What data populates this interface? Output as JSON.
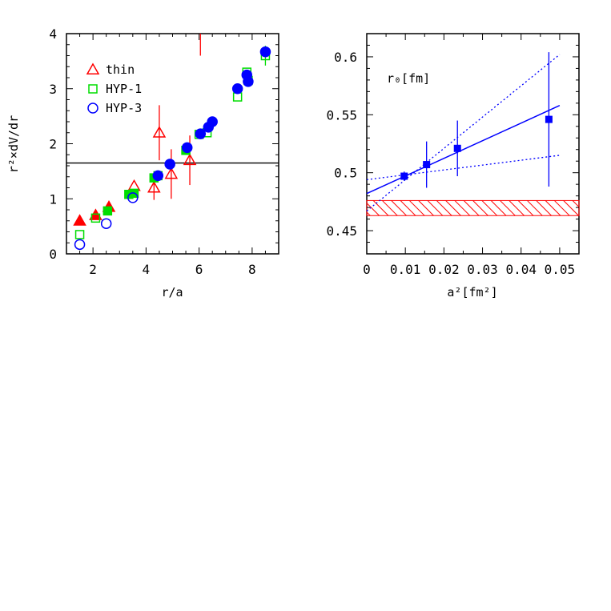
{
  "chart_data": [
    {
      "type": "scatter",
      "xlabel": "r/a",
      "ylabel": "r²×dV/dr",
      "xlim": [
        1,
        9
      ],
      "ylim": [
        0,
        4
      ],
      "xticks": [
        "2",
        "4",
        "6",
        "8"
      ],
      "yticks": [
        "0",
        "1",
        "2",
        "3",
        "4"
      ],
      "hline": 1.65,
      "legend_position": "top-left",
      "series": [
        {
          "name": "thin",
          "color": "#ff0000",
          "points": [
            {
              "x": 1.5,
              "y": 0.6,
              "filled": true
            },
            {
              "x": 2.1,
              "y": 0.7,
              "filled": true
            },
            {
              "x": 2.6,
              "y": 0.85,
              "filled": true
            },
            {
              "x": 3.55,
              "y": 1.23,
              "filled": false
            },
            {
              "x": 4.3,
              "y": 1.2,
              "yerr": 0.22,
              "filled": false
            },
            {
              "x": 4.5,
              "y": 2.2,
              "yerr": 0.5,
              "filled": false
            },
            {
              "x": 4.95,
              "y": 1.45,
              "yerr": 0.45,
              "filled": false
            },
            {
              "x": 5.65,
              "y": 1.7,
              "yerr": 0.45,
              "filled": false
            },
            {
              "x": 6.05,
              "y": 4.2,
              "yerr": 0.6,
              "filled": false
            }
          ]
        },
        {
          "name": "HYP-1",
          "color": "#00dd00",
          "points": [
            {
              "x": 1.5,
              "y": 0.35,
              "filled": false
            },
            {
              "x": 2.1,
              "y": 0.65,
              "filled": false
            },
            {
              "x": 2.55,
              "y": 0.78,
              "filled": true
            },
            {
              "x": 3.35,
              "y": 1.08,
              "filled": true
            },
            {
              "x": 3.55,
              "y": 1.1,
              "filled": true
            },
            {
              "x": 4.3,
              "y": 1.38,
              "filled": true
            },
            {
              "x": 4.45,
              "y": 1.42,
              "filled": true
            },
            {
              "x": 5.5,
              "y": 1.88,
              "filled": true
            },
            {
              "x": 6.0,
              "y": 2.17,
              "filled": false
            },
            {
              "x": 6.3,
              "y": 2.2,
              "filled": false
            },
            {
              "x": 7.45,
              "y": 2.85,
              "filled": false
            },
            {
              "x": 7.8,
              "y": 3.3,
              "filled": false
            },
            {
              "x": 7.85,
              "y": 3.15,
              "filled": false
            },
            {
              "x": 8.5,
              "y": 3.6,
              "yerr": 0.18,
              "filled": false
            }
          ]
        },
        {
          "name": "HYP-3",
          "color": "#0000ff",
          "points": [
            {
              "x": 1.5,
              "y": 0.17,
              "filled": false
            },
            {
              "x": 2.5,
              "y": 0.55,
              "filled": false
            },
            {
              "x": 3.5,
              "y": 1.02,
              "filled": false
            },
            {
              "x": 4.45,
              "y": 1.42,
              "filled": true
            },
            {
              "x": 4.9,
              "y": 1.63,
              "filled": true
            },
            {
              "x": 5.55,
              "y": 1.93,
              "filled": true
            },
            {
              "x": 6.05,
              "y": 2.18,
              "filled": true
            },
            {
              "x": 6.35,
              "y": 2.3,
              "filled": true
            },
            {
              "x": 6.5,
              "y": 2.4,
              "filled": true
            },
            {
              "x": 7.45,
              "y": 3.0,
              "filled": true
            },
            {
              "x": 7.8,
              "y": 3.25,
              "filled": true
            },
            {
              "x": 7.85,
              "y": 3.13,
              "filled": true
            },
            {
              "x": 8.5,
              "y": 3.67,
              "filled": true
            }
          ]
        }
      ]
    },
    {
      "type": "scatter",
      "xlabel": "a²[fm²]",
      "ylabel": "",
      "annotation": "r₀[fm]",
      "xlim": [
        0,
        0.055
      ],
      "ylim": [
        0.43,
        0.62
      ],
      "xticks": [
        "0",
        "0.01",
        "0.02",
        "0.03",
        "0.04",
        "0.05"
      ],
      "yticks": [
        "0.45",
        "0.5",
        "0.55",
        "0.6"
      ],
      "color": "#0000ff",
      "band_color": "#ff0000",
      "band": [
        0.463,
        0.476
      ],
      "fit_line": {
        "x": [
          0,
          0.05
        ],
        "y": [
          0.482,
          0.558
        ]
      },
      "upper_bound": {
        "x": [
          0,
          0.05
        ],
        "y": [
          0.467,
          0.602
        ]
      },
      "lower_bound": {
        "x": [
          0,
          0.05
        ],
        "y": [
          0.494,
          0.515
        ]
      },
      "points": [
        {
          "x": 0.0097,
          "y": 0.497,
          "yerr": 0.004
        },
        {
          "x": 0.0155,
          "y": 0.507,
          "yerr": 0.02
        },
        {
          "x": 0.0235,
          "y": 0.521,
          "yerr": 0.024
        },
        {
          "x": 0.0472,
          "y": 0.546,
          "yerr": 0.058
        }
      ]
    }
  ]
}
